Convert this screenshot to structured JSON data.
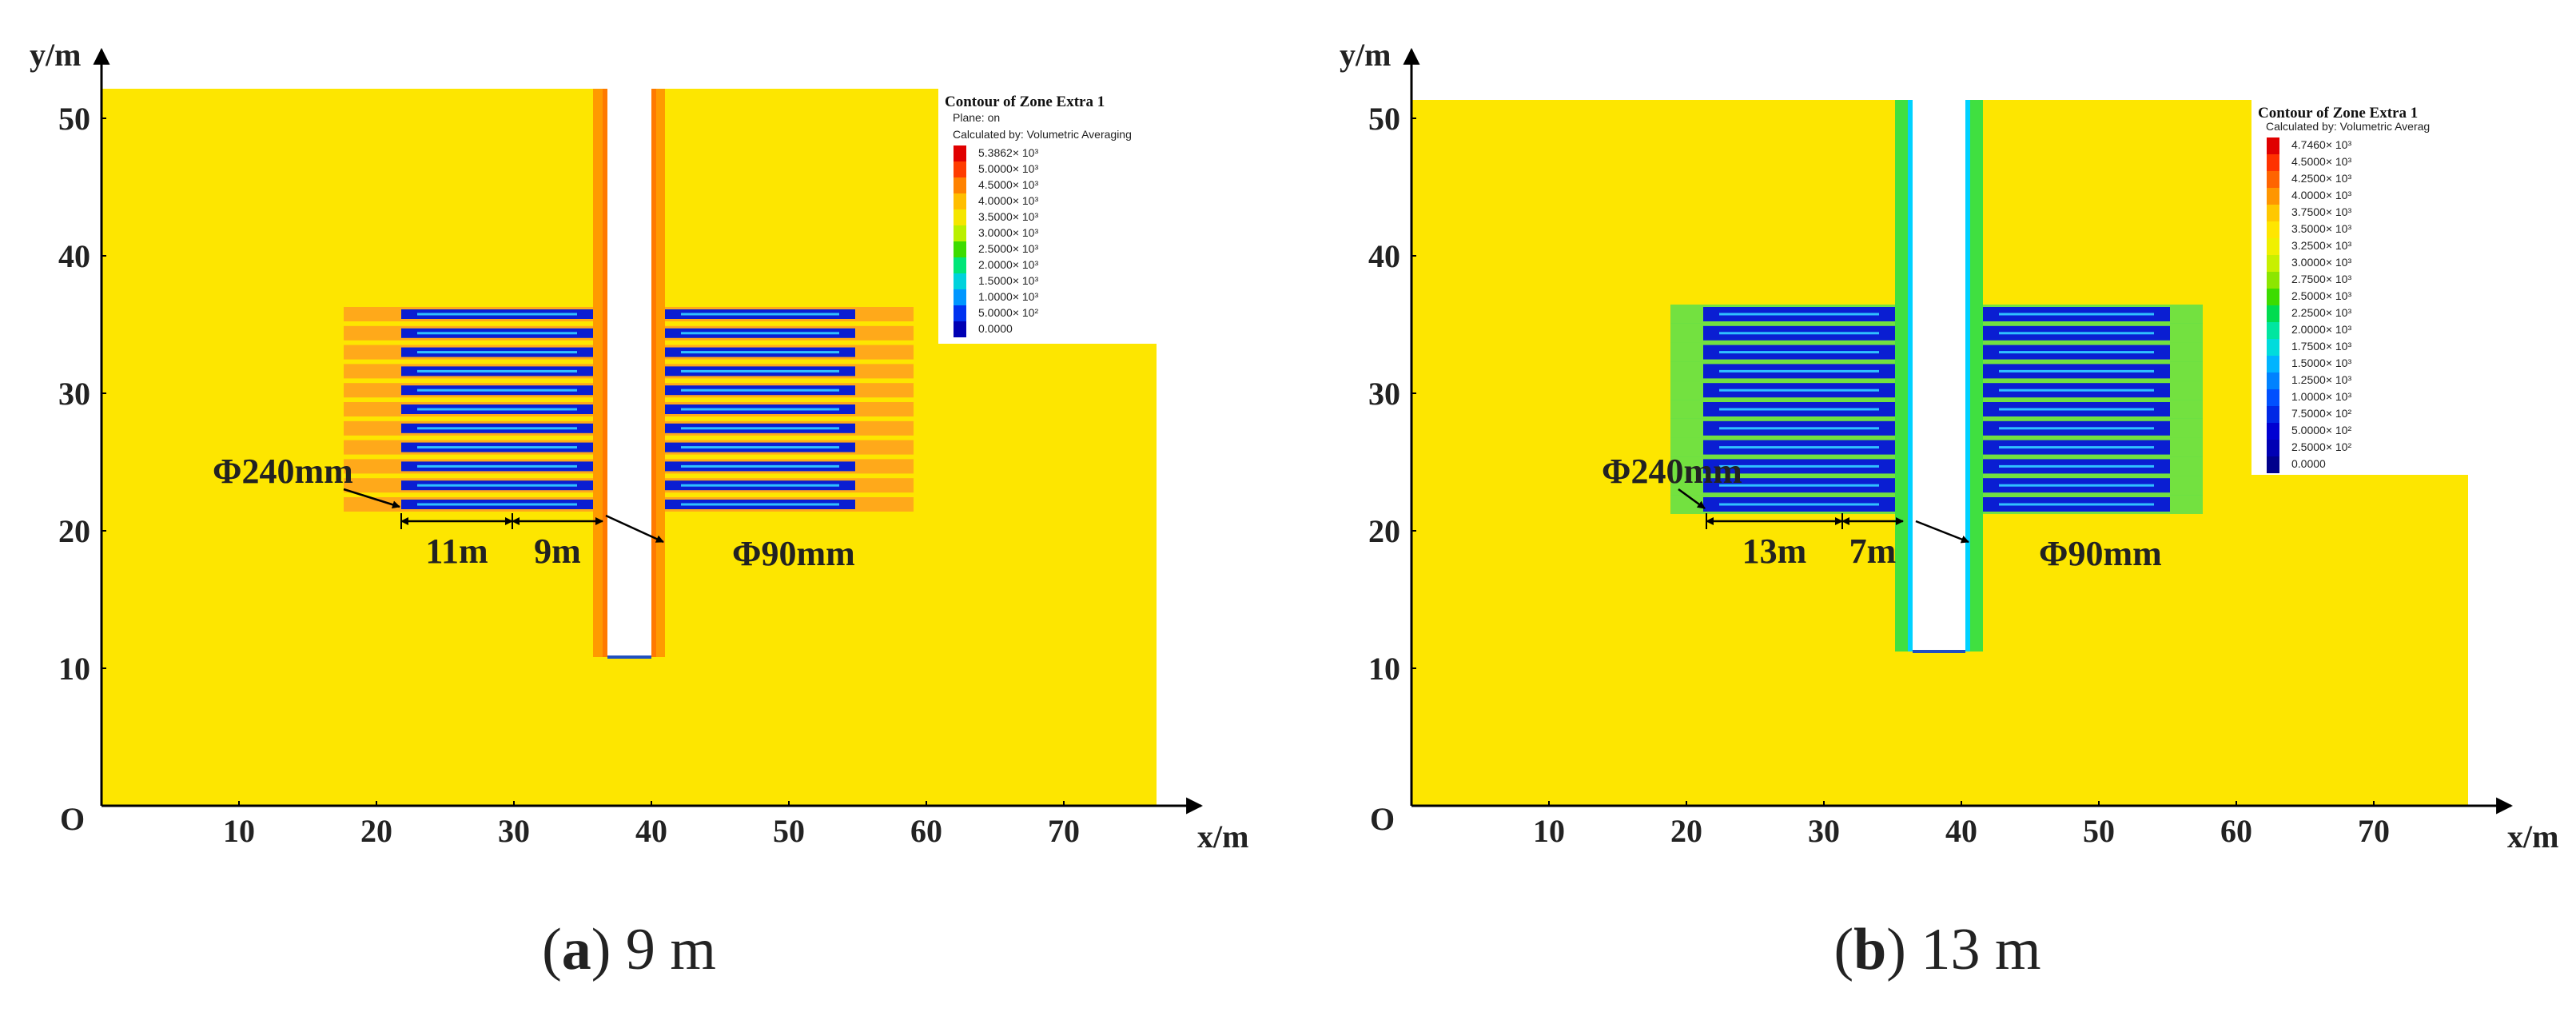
{
  "chart_data": [
    {
      "type": "contour",
      "caption": [
        "(",
        "a",
        ") 9 m"
      ],
      "x_label": "x/m",
      "y_label": "y/m",
      "origin_label": "O",
      "xlim": [
        0,
        80
      ],
      "ylim": [
        0,
        55
      ],
      "xticks": [
        10,
        20,
        30,
        40,
        50,
        60,
        70
      ],
      "yticks": [
        10,
        20,
        30,
        40,
        50
      ],
      "annotations": [
        "Φ240mm",
        "11m",
        "9m",
        "Φ90mm"
      ],
      "colorbar": {
        "title": "Contour of Zone Extra 1",
        "subtitles": [
          "Plane: on",
          "Calculated by: Volumetric Averaging"
        ],
        "ticks": [
          {
            "value": 5386.2,
            "label": "5.3862× 10³"
          },
          {
            "value": 5000,
            "label": "5.0000× 10³"
          },
          {
            "value": 4500,
            "label": "4.5000× 10³"
          },
          {
            "value": 4000,
            "label": "4.0000× 10³"
          },
          {
            "value": 3500,
            "label": "3.5000× 10³"
          },
          {
            "value": 3000,
            "label": "3.0000× 10³"
          },
          {
            "value": 2500,
            "label": "2.5000× 10³"
          },
          {
            "value": 2000,
            "label": "2.0000× 10³"
          },
          {
            "value": 1500,
            "label": "1.5000× 10³"
          },
          {
            "value": 1000,
            "label": "1.0000× 10³"
          },
          {
            "value": 500,
            "label": "5.0000× 10²"
          },
          {
            "value": 0,
            "label": "0.0000"
          }
        ],
        "colors": [
          "#e00000",
          "#ff3c00",
          "#ff8200",
          "#ffbe00",
          "#f5e600",
          "#b9f000",
          "#3cdc00",
          "#00e678",
          "#00d2dc",
          "#0096ff",
          "#0032f0",
          "#0000b4"
        ]
      }
    },
    {
      "type": "contour",
      "caption": [
        "(",
        "b",
        ") 13 m"
      ],
      "x_label": "x/m",
      "y_label": "y/m",
      "origin_label": "O",
      "xlim": [
        0,
        80
      ],
      "ylim": [
        0,
        55
      ],
      "xticks": [
        10,
        20,
        30,
        40,
        50,
        60,
        70
      ],
      "yticks": [
        10,
        20,
        30,
        40,
        50
      ],
      "annotations": [
        "Φ240mm",
        "13m",
        "7m",
        "Φ90mm"
      ],
      "colorbar": {
        "title": "Contour of Zone Extra 1",
        "subtitles": [
          "Calculated by: Volumetric Averag"
        ],
        "ticks": [
          {
            "value": 4746,
            "label": "4.7460× 10³"
          },
          {
            "value": 4500,
            "label": "4.5000× 10³"
          },
          {
            "value": 4250,
            "label": "4.2500× 10³"
          },
          {
            "value": 4000,
            "label": "4.0000× 10³"
          },
          {
            "value": 3750,
            "label": "3.7500× 10³"
          },
          {
            "value": 3500,
            "label": "3.5000× 10³"
          },
          {
            "value": 3250,
            "label": "3.2500× 10³"
          },
          {
            "value": 3000,
            "label": "3.0000× 10³"
          },
          {
            "value": 2750,
            "label": "2.7500× 10³"
          },
          {
            "value": 2500,
            "label": "2.5000× 10³"
          },
          {
            "value": 2250,
            "label": "2.2500× 10³"
          },
          {
            "value": 2000,
            "label": "2.0000× 10³"
          },
          {
            "value": 1750,
            "label": "1.7500× 10³"
          },
          {
            "value": 1500,
            "label": "1.5000× 10³"
          },
          {
            "value": 1250,
            "label": "1.2500× 10³"
          },
          {
            "value": 1000,
            "label": "1.0000× 10³"
          },
          {
            "value": 750,
            "label": "7.5000× 10²"
          },
          {
            "value": 500,
            "label": "5.0000× 10²"
          },
          {
            "value": 250,
            "label": "2.5000× 10²"
          },
          {
            "value": 0,
            "label": "0.0000"
          }
        ],
        "colors": [
          "#e00000",
          "#ff3200",
          "#ff6400",
          "#ff9600",
          "#ffc800",
          "#ffe600",
          "#f0f000",
          "#c8f000",
          "#8ce600",
          "#3cdc00",
          "#00dc50",
          "#00e6a0",
          "#00dcdc",
          "#00b4ff",
          "#0082ff",
          "#0050ff",
          "#0028e6",
          "#0000d2",
          "#0000b4",
          "#00008c"
        ]
      }
    }
  ]
}
